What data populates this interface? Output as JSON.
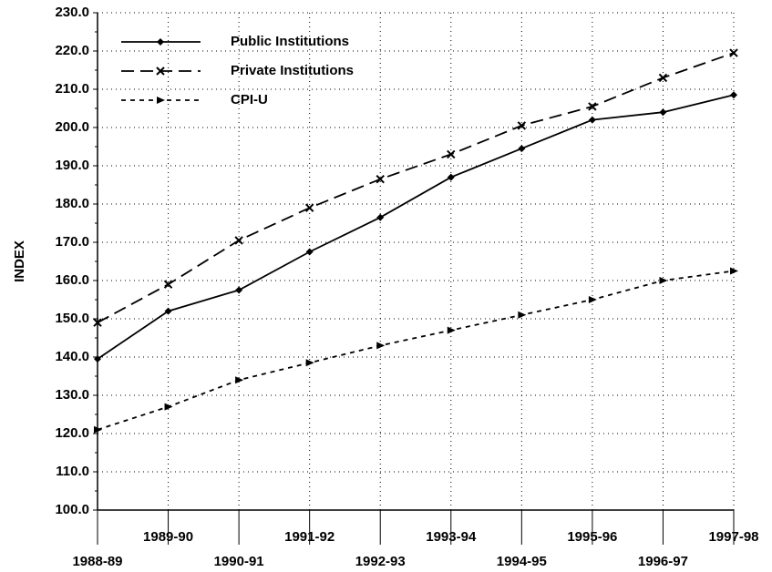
{
  "chart_data": {
    "type": "line",
    "y_label": "INDEX",
    "categories": [
      "1988-89",
      "1989-90",
      "1990-91",
      "1991-92",
      "1992-93",
      "1993-94",
      "1994-95",
      "1995-96",
      "1996-97",
      "1997-98"
    ],
    "series": [
      {
        "name": "Public Institutions",
        "color": "#000000",
        "dash": "solid",
        "marker": "diamond",
        "values": [
          139.5,
          152,
          157.5,
          167.5,
          176.5,
          187,
          194.5,
          202,
          204,
          208.5
        ]
      },
      {
        "name": "Private Institutions",
        "color": "#000000",
        "dash": "dashed",
        "marker": "x",
        "values": [
          149,
          159,
          170.5,
          179,
          186.5,
          193,
          200.5,
          205.5,
          213,
          219.5
        ]
      },
      {
        "name": "CPI-U",
        "color": "#000000",
        "dash": "dotted",
        "marker": "triangle",
        "values": [
          121,
          127,
          134,
          138.5,
          143,
          147,
          151,
          155,
          160,
          162.5
        ]
      }
    ],
    "ylim": [
      100,
      230
    ],
    "yticks": [
      {
        "value": 100,
        "label": "100.0"
      },
      {
        "value": 110,
        "label": "110.0"
      },
      {
        "value": 120,
        "label": "120.0"
      },
      {
        "value": 130,
        "label": "130.0"
      },
      {
        "value": 140,
        "label": "140.0"
      },
      {
        "value": 150,
        "label": "150.0"
      },
      {
        "value": 160,
        "label": "160.0"
      },
      {
        "value": 170,
        "label": "170.0"
      },
      {
        "value": 180,
        "label": "180.0"
      },
      {
        "value": 190,
        "label": "190.0"
      },
      {
        "value": 200,
        "label": "200.0"
      },
      {
        "value": 210,
        "label": "210.0"
      },
      {
        "value": 220,
        "label": "220.0"
      },
      {
        "value": 230,
        "label": "230.0"
      }
    ],
    "grid": true,
    "legend": "upper left"
  }
}
